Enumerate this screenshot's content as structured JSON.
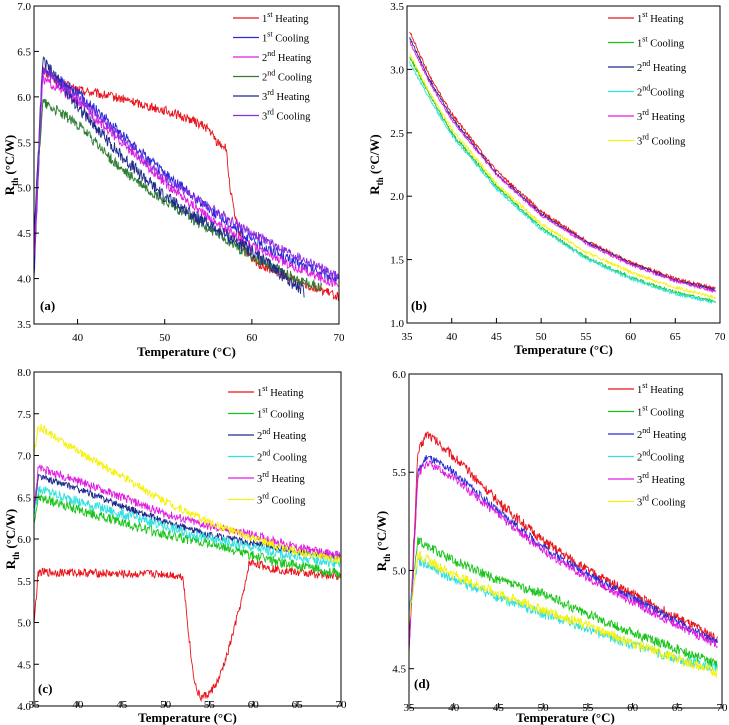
{
  "colors": {
    "red": "#e8141b",
    "green": "#19c419",
    "blue": "#2a2ad6",
    "navy": "#1f2a8c",
    "magenta": "#e21be2",
    "purple": "#8a2be2",
    "cyan": "#33e0e0",
    "yellow": "#f5f20a",
    "darkgreen": "#2e7d32"
  },
  "chart_data": [
    {
      "panel": "(a)",
      "type": "line",
      "xlabel": "Temperature (°C)",
      "ylabel_main": "R",
      "ylabel_sub": "th",
      "ylabel_rest": " (°C/W)",
      "xlim": [
        35,
        70
      ],
      "ylim": [
        3.5,
        7.0
      ],
      "xticks": [
        40,
        50,
        60,
        70
      ],
      "yticks": [
        3.5,
        4.0,
        4.5,
        5.0,
        5.5,
        6.0,
        6.5,
        7.0
      ],
      "tick_decimals": 1,
      "legend_position": "top-right",
      "series": [
        {
          "num": "1",
          "sup": "st",
          "suffix": " Heating",
          "color": "red",
          "noise": 0.05,
          "x": [
            35,
            36,
            38,
            40,
            45,
            50,
            53,
            55,
            56,
            57,
            57.5,
            58,
            59,
            60,
            62,
            65,
            70
          ],
          "values": [
            4.1,
            6.3,
            6.15,
            6.08,
            5.98,
            5.85,
            5.75,
            5.65,
            5.5,
            5.45,
            5.0,
            4.7,
            4.35,
            4.2,
            4.1,
            3.98,
            3.8
          ]
        },
        {
          "num": "1",
          "sup": "st",
          "suffix": " Cooling",
          "color": "blue",
          "noise": 0.06,
          "x": [
            35,
            36,
            40,
            45,
            50,
            55,
            60,
            65,
            70
          ],
          "values": [
            4.0,
            6.3,
            6.05,
            5.6,
            5.15,
            4.78,
            4.42,
            4.18,
            3.98
          ]
        },
        {
          "num": "2",
          "sup": "nd",
          "suffix": " Heating",
          "color": "magenta",
          "noise": 0.05,
          "x": [
            35,
            36,
            40,
            45,
            50,
            55,
            60,
            65,
            70
          ],
          "values": [
            4.2,
            6.2,
            5.95,
            5.5,
            5.05,
            4.68,
            4.35,
            4.12,
            3.93
          ]
        },
        {
          "num": "2",
          "sup": "nd",
          "suffix": " Cooling",
          "color": "darkgreen",
          "noise": 0.06,
          "x": [
            35,
            36,
            40,
            45,
            50,
            55,
            60,
            65,
            68
          ],
          "values": [
            4.5,
            5.95,
            5.7,
            5.2,
            4.85,
            4.55,
            4.25,
            4.0,
            3.9
          ]
        },
        {
          "num": "3",
          "sup": "rd",
          "suffix": " Heating",
          "color": "navy",
          "noise": 0.07,
          "x": [
            35,
            36,
            40,
            45,
            50,
            55,
            60,
            64,
            66
          ],
          "values": [
            4.4,
            6.4,
            5.9,
            5.35,
            4.9,
            4.6,
            4.3,
            4.0,
            3.85
          ]
        },
        {
          "num": "3",
          "sup": "rd",
          "suffix": " Cooling",
          "color": "purple",
          "noise": 0.05,
          "x": [
            35,
            36,
            40,
            45,
            50,
            55,
            60,
            65,
            70
          ],
          "values": [
            4.3,
            6.3,
            6.0,
            5.55,
            5.1,
            4.8,
            4.5,
            4.25,
            4.02
          ]
        }
      ]
    },
    {
      "panel": "(b)",
      "type": "line",
      "xlabel": "Temperature (°C)",
      "ylabel_main": "R",
      "ylabel_sub": "th",
      "ylabel_rest": " (°C/W)",
      "xlim": [
        35,
        70
      ],
      "ylim": [
        1.0,
        3.5
      ],
      "xticks": [
        35,
        40,
        45,
        50,
        55,
        60,
        65,
        70
      ],
      "yticks": [
        1.0,
        1.5,
        2.0,
        2.5,
        3.0,
        3.5
      ],
      "tick_decimals": 1,
      "legend_position": "top-right",
      "series": [
        {
          "num": "1",
          "sup": "st",
          "suffix": " Heating",
          "color": "red",
          "noise": 0.012,
          "x": [
            35.3,
            37.5,
            40,
            45,
            50,
            55,
            60,
            65,
            69.5
          ],
          "values": [
            3.3,
            2.95,
            2.65,
            2.2,
            1.88,
            1.65,
            1.48,
            1.35,
            1.27
          ]
        },
        {
          "num": "1",
          "sup": "st",
          "suffix": " Cooling",
          "color": "green",
          "noise": 0.012,
          "x": [
            35.3,
            37.5,
            40,
            45,
            50,
            55,
            60,
            65,
            69.5
          ],
          "values": [
            3.1,
            2.8,
            2.5,
            2.08,
            1.75,
            1.52,
            1.36,
            1.24,
            1.17
          ]
        },
        {
          "num": "2",
          "sup": "nd",
          "suffix": " Heating",
          "color": "navy",
          "noise": 0.01,
          "x": [
            35.3,
            37.5,
            40,
            45,
            50,
            55,
            60,
            65,
            69.5
          ],
          "values": [
            3.25,
            2.92,
            2.62,
            2.18,
            1.86,
            1.64,
            1.47,
            1.34,
            1.26
          ]
        },
        {
          "num": "2",
          "sup": "nd",
          "suffix": "Cooling",
          "color": "cyan",
          "noise": 0.012,
          "x": [
            35.3,
            37.5,
            40,
            45,
            50,
            55,
            60,
            65,
            69.5
          ],
          "values": [
            3.05,
            2.77,
            2.48,
            2.06,
            1.74,
            1.51,
            1.35,
            1.23,
            1.16
          ]
        },
        {
          "num": "3",
          "sup": "rd",
          "suffix": " Heating",
          "color": "magenta",
          "noise": 0.01,
          "x": [
            35.3,
            37.5,
            40,
            45,
            50,
            55,
            60,
            65,
            69.5
          ],
          "values": [
            3.22,
            2.9,
            2.6,
            2.17,
            1.85,
            1.63,
            1.46,
            1.33,
            1.25
          ]
        },
        {
          "num": "3",
          "sup": "rd",
          "suffix": " Cooling",
          "color": "yellow",
          "noise": 0.012,
          "x": [
            35.3,
            37.5,
            40,
            45,
            50,
            55,
            60,
            65,
            69.5
          ],
          "values": [
            3.12,
            2.82,
            2.53,
            2.1,
            1.78,
            1.56,
            1.4,
            1.28,
            1.2
          ]
        }
      ]
    },
    {
      "panel": "(c)",
      "type": "line",
      "xlabel": "Temperature (°C)",
      "ylabel_main": "R",
      "ylabel_sub": "th",
      "ylabel_rest": " (°C/W)",
      "xlim": [
        35,
        70
      ],
      "ylim": [
        4.0,
        8.0
      ],
      "xticks": [
        35,
        40,
        45,
        50,
        55,
        60,
        65,
        70
      ],
      "yticks": [
        4.0,
        4.5,
        5.0,
        5.5,
        6.0,
        6.5,
        7.0,
        7.5,
        8.0
      ],
      "tick_decimals": 1,
      "legend_position": "top-right",
      "series": [
        {
          "num": "1",
          "sup": "st",
          "suffix": " Heating",
          "color": "red",
          "noise": 0.05,
          "x": [
            35,
            35.5,
            40,
            45,
            50,
            52,
            52.5,
            53,
            53.5,
            54,
            55,
            56,
            57,
            58,
            59,
            59.5,
            60,
            62,
            65,
            70
          ],
          "values": [
            5.0,
            5.6,
            5.6,
            5.58,
            5.58,
            5.55,
            5.0,
            4.5,
            4.2,
            4.1,
            4.15,
            4.3,
            4.6,
            5.0,
            5.4,
            5.7,
            5.72,
            5.65,
            5.6,
            5.55
          ]
        },
        {
          "num": "1",
          "sup": "st",
          "suffix": " Cooling",
          "color": "green",
          "noise": 0.06,
          "x": [
            35,
            35.5,
            40,
            45,
            50,
            55,
            60,
            65,
            70
          ],
          "values": [
            6.2,
            6.5,
            6.35,
            6.2,
            6.05,
            5.95,
            5.8,
            5.68,
            5.58
          ]
        },
        {
          "num": "2",
          "sup": "nd",
          "suffix": " Heating",
          "color": "navy",
          "noise": 0.04,
          "x": [
            35,
            35.5,
            40,
            45,
            50,
            55,
            60,
            65,
            70
          ],
          "values": [
            6.3,
            6.75,
            6.6,
            6.4,
            6.2,
            6.05,
            5.95,
            5.85,
            5.78
          ]
        },
        {
          "num": "2",
          "sup": "nd",
          "suffix": " Cooling",
          "color": "cyan",
          "noise": 0.06,
          "x": [
            35,
            35.5,
            40,
            45,
            50,
            55,
            60,
            65,
            70
          ],
          "values": [
            6.3,
            6.6,
            6.45,
            6.3,
            6.15,
            6.0,
            5.9,
            5.78,
            5.7
          ]
        },
        {
          "num": "3",
          "sup": "rd",
          "suffix": " Heating",
          "color": "magenta",
          "noise": 0.05,
          "x": [
            35,
            35.5,
            40,
            45,
            50,
            55,
            60,
            65,
            70
          ],
          "values": [
            6.4,
            6.85,
            6.7,
            6.5,
            6.3,
            6.15,
            6.05,
            5.9,
            5.8
          ]
        },
        {
          "num": "3",
          "sup": "rd",
          "suffix": " Cooling",
          "color": "yellow",
          "noise": 0.05,
          "x": [
            35,
            35.5,
            40,
            45,
            50,
            55,
            60,
            65,
            70
          ],
          "values": [
            7.0,
            7.35,
            7.05,
            6.75,
            6.45,
            6.2,
            6.0,
            5.85,
            5.75
          ]
        }
      ]
    },
    {
      "panel": "(d)",
      "type": "line",
      "xlabel": "Temperature (°C)",
      "ylabel_main": "R",
      "ylabel_sub": "th",
      "ylabel_rest": " (°C/W)",
      "xlim": [
        35,
        70
      ],
      "ylim": [
        4.3,
        6.0
      ],
      "xticks": [
        35,
        40,
        45,
        50,
        55,
        60,
        65,
        70
      ],
      "yticks": [
        4.5,
        5.0,
        5.5,
        6.0
      ],
      "tick_decimals": 1,
      "legend_position": "top-right",
      "series": [
        {
          "num": "1",
          "sup": "st",
          "suffix": " Heating",
          "color": "red",
          "noise": 0.025,
          "x": [
            35,
            36,
            37,
            40,
            45,
            50,
            55,
            60,
            65,
            69.5
          ],
          "values": [
            4.6,
            5.6,
            5.7,
            5.58,
            5.35,
            5.15,
            5.0,
            4.88,
            4.76,
            4.65
          ]
        },
        {
          "num": "1",
          "sup": "st",
          "suffix": " Cooling",
          "color": "green",
          "noise": 0.025,
          "x": [
            35,
            36,
            40,
            45,
            50,
            55,
            60,
            65,
            69.5
          ],
          "values": [
            4.8,
            5.15,
            5.05,
            4.95,
            4.88,
            4.78,
            4.68,
            4.6,
            4.52
          ]
        },
        {
          "num": "2",
          "sup": "nd",
          "suffix": " Heating",
          "color": "blue",
          "noise": 0.02,
          "x": [
            35,
            36,
            37,
            40,
            45,
            50,
            55,
            60,
            65,
            69.5
          ],
          "values": [
            4.6,
            5.5,
            5.58,
            5.5,
            5.3,
            5.12,
            4.98,
            4.86,
            4.74,
            4.63
          ]
        },
        {
          "num": "2",
          "sup": "nd",
          "suffix": "Cooling",
          "color": "cyan",
          "noise": 0.025,
          "x": [
            35,
            36,
            40,
            45,
            50,
            55,
            60,
            65,
            69.5
          ],
          "values": [
            4.8,
            5.05,
            4.95,
            4.86,
            4.78,
            4.7,
            4.62,
            4.55,
            4.5
          ]
        },
        {
          "num": "3",
          "sup": "rd",
          "suffix": " Heating",
          "color": "magenta",
          "noise": 0.02,
          "x": [
            35,
            36,
            37,
            40,
            45,
            50,
            55,
            60,
            65,
            69.5
          ],
          "values": [
            4.6,
            5.48,
            5.55,
            5.47,
            5.28,
            5.1,
            4.96,
            4.84,
            4.72,
            4.62
          ]
        },
        {
          "num": "3",
          "sup": "rd",
          "suffix": " Cooling",
          "color": "yellow",
          "noise": 0.025,
          "x": [
            35,
            36,
            40,
            45,
            50,
            55,
            60,
            65,
            69.5
          ],
          "values": [
            4.75,
            5.08,
            4.98,
            4.88,
            4.8,
            4.72,
            4.63,
            4.55,
            4.48
          ]
        }
      ]
    }
  ]
}
